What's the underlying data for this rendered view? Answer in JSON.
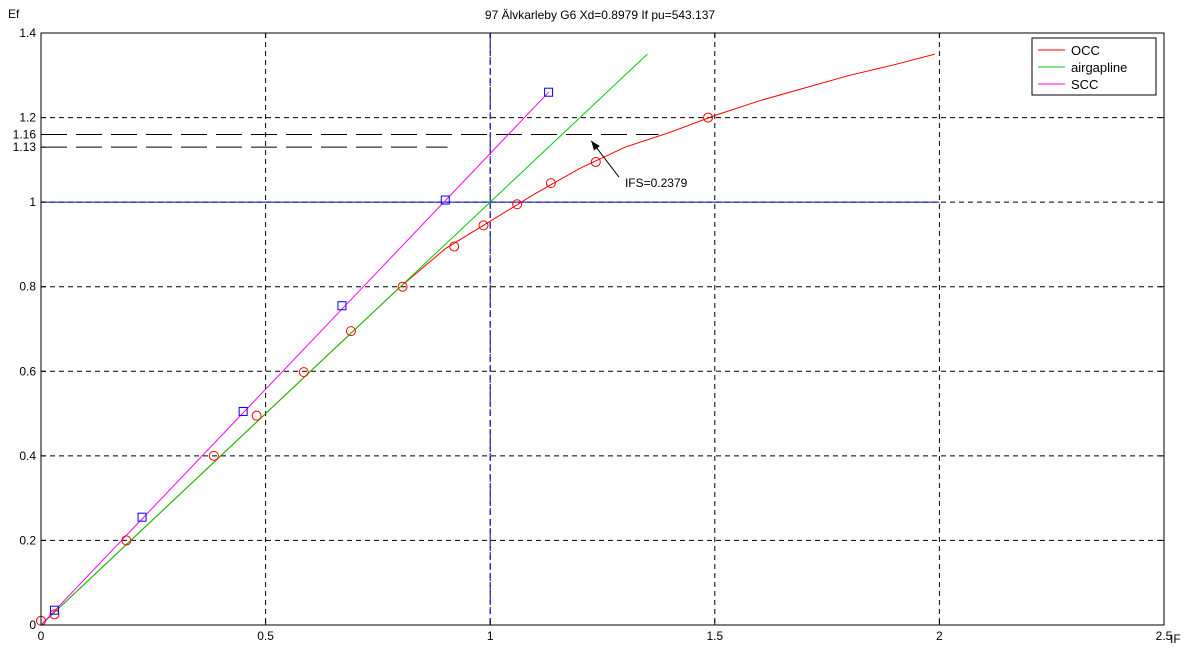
{
  "chart_data": {
    "type": "line",
    "title": "97 Älvkarleby G6 Xd=0.8979 If pu=543.137",
    "xlabel": "IF",
    "ylabel": "Ef",
    "xlim": [
      0,
      2.5
    ],
    "ylim": [
      0,
      1.4
    ],
    "xticks": [
      "0",
      "0.5",
      "1",
      "1.5",
      "2",
      "2.5"
    ],
    "yticks": [
      "0",
      "0.2",
      "0.4",
      "0.6",
      "0.8",
      "1",
      "1.2",
      "1.4"
    ],
    "xtick_values": [
      0,
      0.5,
      1,
      1.5,
      2,
      2.5
    ],
    "ytick_values": [
      0,
      0.2,
      0.4,
      0.6,
      0.8,
      1.0,
      1.2,
      1.4
    ],
    "extra_ytick_labels": [
      {
        "label": "1.16",
        "value": 1.16
      },
      {
        "label": "1.13",
        "value": 1.13
      }
    ],
    "grid": true,
    "legend_position": "top-right",
    "series": [
      {
        "name": "OCC",
        "color": "#ff0000",
        "style": "line",
        "x": [
          0.0,
          0.2,
          0.4,
          0.6,
          0.8,
          0.9,
          1.0,
          1.1,
          1.2,
          1.3,
          1.4,
          1.5,
          1.6,
          1.7,
          1.8,
          1.9,
          1.99
        ],
        "y": [
          0.0,
          0.2,
          0.4,
          0.6,
          0.8,
          0.89,
          0.955,
          1.02,
          1.08,
          1.13,
          1.165,
          1.205,
          1.24,
          1.27,
          1.3,
          1.325,
          1.35
        ]
      },
      {
        "name": "airgapline",
        "color": "#00cc00",
        "style": "line",
        "x": [
          0.0,
          1.35
        ],
        "y": [
          0.0,
          1.35
        ]
      },
      {
        "name": "SCC",
        "color": "#ff00ff",
        "style": "line",
        "x": [
          0.0,
          1.13
        ],
        "y": [
          0.0,
          1.26
        ]
      }
    ],
    "markers": [
      {
        "name": "OCC",
        "symbol": "circle",
        "color": "#ff0000",
        "x": [
          0.0,
          0.03,
          0.19,
          0.385,
          0.48,
          0.585,
          0.69,
          0.805,
          0.92,
          0.985,
          1.06,
          1.135,
          1.235,
          1.485
        ],
        "y": [
          0.01,
          0.025,
          0.2,
          0.4,
          0.495,
          0.598,
          0.695,
          0.8,
          0.895,
          0.945,
          0.995,
          1.045,
          1.095,
          1.2
        ]
      },
      {
        "name": "SCC",
        "symbol": "square",
        "color": "#0000ff",
        "x": [
          0.03,
          0.225,
          0.45,
          0.67,
          0.9,
          1.13
        ],
        "y": [
          0.035,
          0.255,
          0.505,
          0.755,
          1.005,
          1.26
        ]
      }
    ],
    "reference_lines": [
      {
        "orientation": "horizontal",
        "y": 1.0,
        "x_from": 0,
        "x_to": 2.0,
        "color": "#0000cc",
        "dash": "solid"
      },
      {
        "orientation": "vertical",
        "x": 1.0,
        "y_from": 0,
        "y_to": 1.4,
        "color": "#0000cc",
        "dash": "dash"
      },
      {
        "orientation": "horizontal",
        "y": 1.16,
        "x_from": 0,
        "x_to": 1.375,
        "color": "#000000",
        "dash": "long-dash"
      },
      {
        "orientation": "horizontal",
        "y": 1.13,
        "x_from": 0,
        "x_to": 0.905,
        "color": "#000000",
        "dash": "long-dash"
      }
    ],
    "annotations": [
      {
        "text": "IFS=0.2379",
        "x": 1.3,
        "y": 1.045,
        "arrow_to_x": 1.225,
        "arrow_to_y": 1.145
      }
    ]
  }
}
